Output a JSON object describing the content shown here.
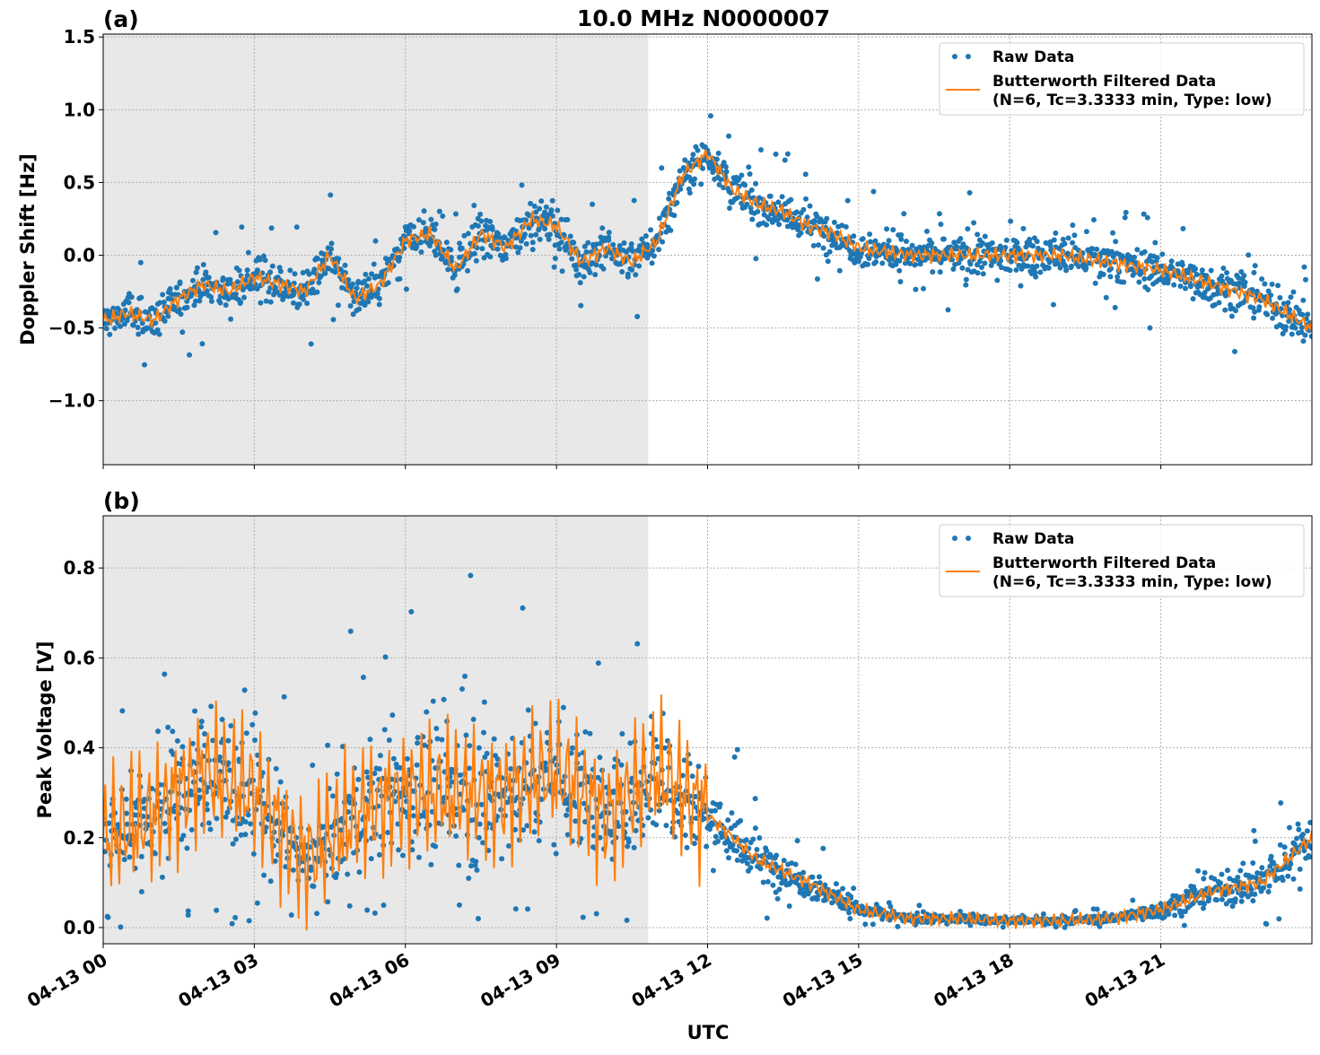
{
  "figure_title": "10.0 MHz N0000007",
  "chart_data": [
    {
      "type": "scatter+line",
      "panel_label": "(a)",
      "ylabel": "Doppler Shift [Hz]",
      "xlabel": "",
      "xlim_hours": [
        0,
        24
      ],
      "ylim": [
        -1.44,
        1.52
      ],
      "yticks": [
        -1.0,
        -0.5,
        0.0,
        0.5,
        1.0,
        1.5
      ],
      "ytick_labels": [
        "−1.0",
        "−0.5",
        "0.0",
        "0.5",
        "1.0",
        "1.5"
      ],
      "grid": true,
      "shaded_region_hours": [
        0,
        10.82
      ],
      "legend_position": "top-right",
      "series": [
        {
          "name": "Raw Data",
          "kind": "scatter",
          "color": "#1f77b4",
          "center_hours": [
            0,
            0.5,
            1,
            1.5,
            2,
            2.5,
            3,
            3.5,
            4,
            4.5,
            5,
            5.5,
            6,
            6.5,
            7,
            7.5,
            8,
            8.5,
            9,
            9.5,
            10,
            10.5,
            11,
            11.5,
            12,
            12.5,
            13,
            13.5,
            14,
            14.5,
            15,
            16,
            17,
            18,
            19,
            20,
            21,
            22,
            23,
            24
          ],
          "center": [
            -0.45,
            -0.4,
            -0.45,
            -0.3,
            -0.2,
            -0.25,
            -0.15,
            -0.2,
            -0.25,
            0.0,
            -0.3,
            -0.2,
            0.1,
            0.15,
            -0.1,
            0.15,
            0.05,
            0.25,
            0.2,
            -0.05,
            0.05,
            -0.05,
            0.1,
            0.55,
            0.7,
            0.45,
            0.35,
            0.3,
            0.2,
            0.15,
            0.05,
            0.0,
            0.0,
            0.0,
            0.0,
            -0.05,
            -0.1,
            -0.2,
            -0.3,
            -0.5
          ],
          "spread": 0.22
        },
        {
          "name": "Butterworth Filtered Data\n(N=6, Tc=3.3333 min, Type: low)",
          "kind": "line",
          "color": "#ff7f0e",
          "x_hours": [
            0,
            0.5,
            1,
            1.5,
            2,
            2.5,
            3,
            3.5,
            4,
            4.5,
            5,
            5.5,
            6,
            6.5,
            7,
            7.5,
            8,
            8.5,
            9,
            9.5,
            10,
            10.5,
            11,
            11.5,
            12,
            12.5,
            13,
            13.5,
            14,
            14.5,
            15,
            16,
            17,
            18,
            19,
            20,
            21,
            22,
            23,
            24
          ],
          "y": [
            -0.45,
            -0.4,
            -0.45,
            -0.3,
            -0.2,
            -0.25,
            -0.15,
            -0.2,
            -0.25,
            0.0,
            -0.3,
            -0.2,
            0.1,
            0.15,
            -0.1,
            0.15,
            0.05,
            0.25,
            0.2,
            -0.05,
            0.05,
            -0.05,
            0.1,
            0.55,
            0.7,
            0.45,
            0.35,
            0.3,
            0.2,
            0.15,
            0.05,
            0.0,
            0.0,
            0.0,
            0.0,
            -0.05,
            -0.1,
            -0.2,
            -0.3,
            -0.5
          ]
        }
      ],
      "legend": [
        "Raw Data",
        "Butterworth Filtered Data",
        "(N=6, Tc=3.3333 min, Type: low)"
      ]
    },
    {
      "type": "scatter+line",
      "panel_label": "(b)",
      "ylabel": "Peak Voltage [V]",
      "xlabel": "UTC",
      "xlim_hours": [
        0,
        24
      ],
      "ylim": [
        -0.036,
        0.916
      ],
      "yticks": [
        0.0,
        0.2,
        0.4,
        0.6,
        0.8
      ],
      "ytick_labels": [
        "0.0",
        "0.2",
        "0.4",
        "0.6",
        "0.8"
      ],
      "grid": true,
      "shaded_region_hours": [
        0,
        10.82
      ],
      "legend_position": "top-right",
      "series": [
        {
          "name": "Raw Data",
          "kind": "scatter",
          "color": "#1f77b4",
          "center_hours": [
            0,
            1,
            2,
            3,
            4,
            5,
            6,
            7,
            8,
            9,
            10,
            11,
            12,
            13,
            14,
            15,
            16,
            17,
            18,
            19,
            20,
            21,
            22,
            23,
            24
          ],
          "center": [
            0.2,
            0.25,
            0.35,
            0.3,
            0.15,
            0.25,
            0.3,
            0.3,
            0.3,
            0.35,
            0.25,
            0.35,
            0.25,
            0.15,
            0.1,
            0.04,
            0.02,
            0.02,
            0.015,
            0.015,
            0.02,
            0.04,
            0.08,
            0.1,
            0.2
          ],
          "spread": [
            0.15,
            0.2,
            0.25,
            0.22,
            0.12,
            0.22,
            0.25,
            0.25,
            0.25,
            0.25,
            0.2,
            0.25,
            0.15,
            0.08,
            0.06,
            0.03,
            0.015,
            0.015,
            0.012,
            0.012,
            0.015,
            0.03,
            0.05,
            0.07,
            0.12
          ]
        },
        {
          "name": "Butterworth Filtered Data\n(N=6, Tc=3.3333 min, Type: low)",
          "kind": "line",
          "color": "#ff7f0e",
          "x_hours": [
            0,
            1,
            2,
            3,
            4,
            5,
            6,
            7,
            8,
            9,
            10,
            11,
            12,
            13,
            14,
            15,
            16,
            17,
            18,
            19,
            20,
            21,
            22,
            23,
            24
          ],
          "y": [
            0.2,
            0.25,
            0.35,
            0.3,
            0.15,
            0.25,
            0.3,
            0.3,
            0.3,
            0.35,
            0.25,
            0.35,
            0.25,
            0.15,
            0.1,
            0.04,
            0.02,
            0.02,
            0.015,
            0.015,
            0.02,
            0.04,
            0.08,
            0.1,
            0.2
          ]
        }
      ],
      "legend": [
        "Raw Data",
        "Butterworth Filtered Data",
        "(N=6, Tc=3.3333 min, Type: low)"
      ]
    }
  ],
  "xtick_hours": [
    0,
    3,
    6,
    9,
    12,
    15,
    18,
    21
  ],
  "xtick_labels": [
    "04-13 00",
    "04-13 03",
    "04-13 06",
    "04-13 09",
    "04-13 12",
    "04-13 15",
    "04-13 18",
    "04-13 21"
  ],
  "colors": {
    "raw": "#1f77b4",
    "filtered": "#ff7f0e",
    "shade": "#e8e8e8",
    "grid": "#b0b0b0"
  }
}
